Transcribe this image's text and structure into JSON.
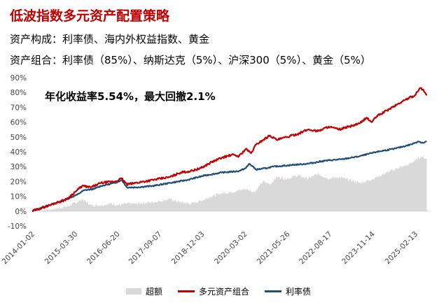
{
  "title": "低波指数多元资产配置策略",
  "subtitle1": "资产构成：利率债、海内外权益指数、黄金",
  "subtitle2": "资产组合：利率债（85%）、纳斯达克（5%）、沪深300（5%）、黄金（5%）",
  "chart_data": {
    "type": "line",
    "annotation": "年化收益率5.54%，最大回撤2.1%",
    "y_ticks": [
      "90%",
      "80%",
      "70%",
      "60%",
      "50%",
      "40%",
      "30%",
      "20%",
      "10%",
      "0%",
      "-10%"
    ],
    "ylim": [
      -10,
      90
    ],
    "x_ticks": [
      "2014-01-02",
      "2015-03-30",
      "2016-06-20",
      "2017-09-07",
      "2018-12-03",
      "2020-03-02",
      "2021-05-26",
      "2022-08-17",
      "2023-11-14",
      "2025-02-13"
    ],
    "x_range": [
      2014.0,
      2025.5
    ],
    "legend": [
      "超额",
      "多元资产组合",
      "利率债"
    ],
    "colors": {
      "excess": "#d9d9d9",
      "portfolio": "#c00000",
      "bond": "#1f4e79"
    },
    "series": [
      {
        "name": "超额",
        "kind": "area",
        "x": [
          2014.0,
          2014.5,
          2015.0,
          2015.3,
          2015.45,
          2015.7,
          2016.0,
          2016.3,
          2016.5,
          2016.75,
          2017.0,
          2017.5,
          2018.0,
          2018.3,
          2018.6,
          2018.9,
          2019.2,
          2019.5,
          2019.8,
          2020.2,
          2020.45,
          2020.7,
          2020.9,
          2021.1,
          2021.4,
          2021.7,
          2022.0,
          2022.3,
          2022.6,
          2022.9,
          2023.2,
          2023.5,
          2023.8,
          2024.0,
          2024.3,
          2024.6,
          2024.9,
          2025.1,
          2025.3,
          2025.45
        ],
        "values": [
          0,
          1,
          3,
          6,
          8,
          4,
          4,
          5,
          4,
          5,
          5,
          6,
          8,
          6,
          5,
          7,
          10,
          12,
          13,
          15,
          13,
          20,
          18,
          23,
          22,
          24,
          22,
          25,
          22,
          23,
          21,
          19,
          21,
          23,
          26,
          29,
          31,
          34,
          37,
          35
        ]
      },
      {
        "name": "多元资产组合",
        "kind": "line",
        "x": [
          2014.0,
          2014.5,
          2015.0,
          2015.3,
          2015.45,
          2015.7,
          2016.0,
          2016.4,
          2016.6,
          2016.75,
          2017.0,
          2017.5,
          2018.0,
          2018.3,
          2018.6,
          2018.9,
          2019.2,
          2019.5,
          2019.8,
          2020.0,
          2020.2,
          2020.35,
          2020.5,
          2020.7,
          2020.9,
          2021.1,
          2021.4,
          2021.7,
          2022.0,
          2022.3,
          2022.6,
          2022.9,
          2023.2,
          2023.5,
          2023.7,
          2023.85,
          2024.0,
          2024.3,
          2024.6,
          2024.9,
          2025.1,
          2025.25,
          2025.35,
          2025.45
        ],
        "values": [
          0,
          4,
          8,
          14,
          17,
          16,
          19,
          20,
          22,
          18,
          19,
          21,
          23,
          26,
          27,
          29,
          33,
          36,
          38,
          37,
          42,
          39,
          45,
          48,
          51,
          48,
          50,
          52,
          55,
          54,
          57,
          55,
          57,
          59,
          63,
          60,
          64,
          68,
          72,
          76,
          78,
          83,
          82,
          78
        ]
      },
      {
        "name": "利率债",
        "kind": "line",
        "x": [
          2014.0,
          2014.5,
          2015.0,
          2015.3,
          2015.5,
          2015.8,
          2016.0,
          2016.4,
          2016.6,
          2016.75,
          2017.0,
          2017.5,
          2018.0,
          2018.5,
          2019.0,
          2019.5,
          2020.0,
          2020.2,
          2020.3,
          2020.5,
          2020.8,
          2021.0,
          2021.5,
          2022.0,
          2022.5,
          2023.0,
          2023.5,
          2024.0,
          2024.5,
          2025.0,
          2025.2,
          2025.35,
          2025.45
        ],
        "values": [
          0,
          4,
          8,
          11,
          14,
          15,
          17,
          19,
          21,
          16,
          16,
          17,
          19,
          21,
          24,
          26,
          27,
          29,
          32,
          28,
          29,
          30,
          31,
          32,
          34,
          35,
          37,
          40,
          42,
          45,
          47,
          46,
          47
        ]
      }
    ]
  }
}
